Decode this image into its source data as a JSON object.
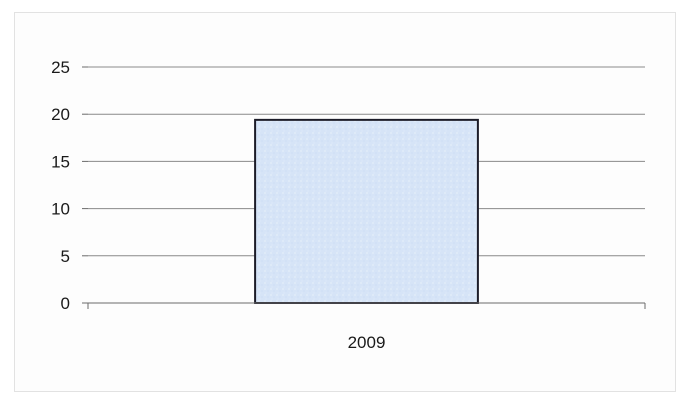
{
  "chart_data": {
    "type": "bar",
    "title": "",
    "xlabel": "",
    "ylabel": "",
    "categories": [
      "2009"
    ],
    "values": [
      19.4
    ],
    "ylim": [
      0,
      25
    ],
    "yticks": [
      0,
      5,
      10,
      15,
      20,
      25
    ],
    "grid": true,
    "legend": "none",
    "bar_color": "#d6e4f7",
    "bar_edge_color": "#1c1c28"
  }
}
